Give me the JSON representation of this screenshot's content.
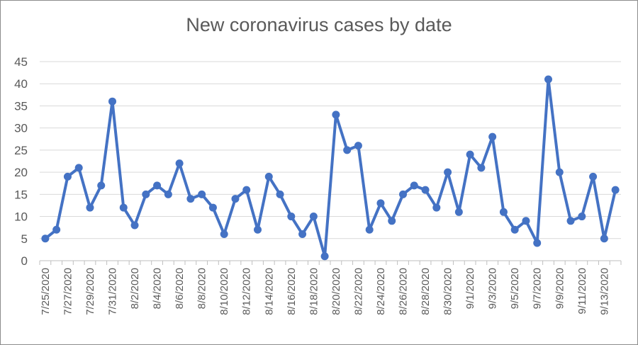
{
  "chart_data": {
    "type": "line",
    "title": "New coronavirus cases by date",
    "xlabel": "",
    "ylabel": "",
    "ylim": [
      0,
      45
    ],
    "y_ticks": [
      0,
      5,
      10,
      15,
      20,
      25,
      30,
      35,
      40,
      45
    ],
    "grid": "horizontal",
    "legend": "none",
    "line_color": "#4472C4",
    "x_tick_labels": [
      "7/25/2020",
      "7/27/2020",
      "7/29/2020",
      "7/31/2020",
      "8/2/2020",
      "8/4/2020",
      "8/6/2020",
      "8/8/2020",
      "8/10/2020",
      "8/12/2020",
      "8/14/2020",
      "8/16/2020",
      "8/18/2020",
      "8/20/2020",
      "8/22/2020",
      "8/24/2020",
      "8/26/2020",
      "8/28/2020",
      "8/30/2020",
      "9/1/2020",
      "9/3/2020",
      "9/5/2020",
      "9/7/2020",
      "9/9/2020",
      "9/11/2020",
      "9/13/2020"
    ],
    "x": [
      "7/25/2020",
      "7/26/2020",
      "7/27/2020",
      "7/28/2020",
      "7/29/2020",
      "7/30/2020",
      "7/31/2020",
      "8/1/2020",
      "8/2/2020",
      "8/3/2020",
      "8/4/2020",
      "8/5/2020",
      "8/6/2020",
      "8/7/2020",
      "8/8/2020",
      "8/9/2020",
      "8/10/2020",
      "8/11/2020",
      "8/12/2020",
      "8/13/2020",
      "8/14/2020",
      "8/15/2020",
      "8/16/2020",
      "8/17/2020",
      "8/18/2020",
      "8/19/2020",
      "8/20/2020",
      "8/21/2020",
      "8/22/2020",
      "8/23/2020",
      "8/24/2020",
      "8/25/2020",
      "8/26/2020",
      "8/27/2020",
      "8/28/2020",
      "8/29/2020",
      "8/30/2020",
      "8/31/2020",
      "9/1/2020",
      "9/2/2020",
      "9/3/2020",
      "9/4/2020",
      "9/5/2020",
      "9/6/2020",
      "9/7/2020",
      "9/8/2020",
      "9/9/2020",
      "9/10/2020",
      "9/11/2020",
      "9/12/2020",
      "9/13/2020",
      "9/14/2020"
    ],
    "values": [
      5,
      7,
      19,
      21,
      12,
      17,
      36,
      12,
      8,
      15,
      17,
      15,
      22,
      14,
      15,
      12,
      6,
      14,
      16,
      7,
      19,
      15,
      10,
      6,
      10,
      1,
      33,
      25,
      26,
      7,
      13,
      9,
      15,
      17,
      16,
      12,
      20,
      11,
      24,
      21,
      28,
      11,
      7,
      9,
      4,
      41,
      20,
      9,
      10,
      19,
      5,
      16
    ]
  }
}
